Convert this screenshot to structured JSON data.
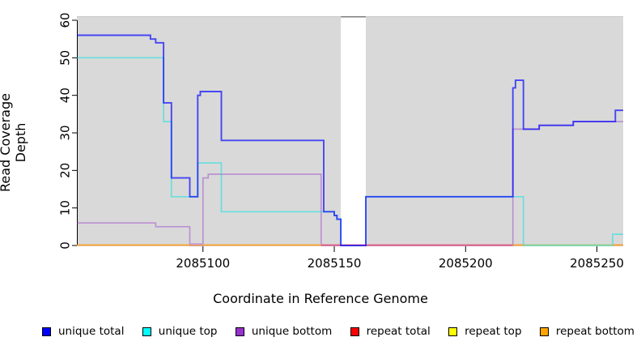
{
  "figure": {
    "x_axis_title": "Coordinate in Reference Genome",
    "y_axis_title": "Read Coverage Depth",
    "plot_background_color": "#D9D9D9",
    "uncovered_band_color": "#FFFFFF"
  },
  "chart_data": {
    "type": "line",
    "step": true,
    "title": "",
    "xlabel": "Coordinate in Reference Genome",
    "ylabel": "Read Coverage Depth",
    "xlim": [
      2085052,
      2085260
    ],
    "ylim": [
      0,
      61
    ],
    "x_tick_labels": [
      "2085100",
      "2085150",
      "2085200",
      "2085250"
    ],
    "x_tick_values": [
      2085100,
      2085150,
      2085200,
      2085250
    ],
    "y_tick_labels": [
      "0",
      "10",
      "20",
      "30",
      "40",
      "50",
      "60"
    ],
    "y_tick_values": [
      0,
      10,
      20,
      30,
      40,
      50,
      60
    ],
    "grid": false,
    "legend_position": "bottom",
    "covered_regions": [
      [
        2085052,
        2085152.5
      ],
      [
        2085162,
        2085260
      ]
    ],
    "uncovered_gap": [
      2085152.5,
      2085162
    ],
    "series": [
      {
        "name": "unique total",
        "legend_color": "#0000FF",
        "line_color": "rgba(0,0,255,0.68)",
        "line_width": 1.9,
        "points": [
          [
            2085052,
            56
          ],
          [
            2085080,
            56
          ],
          [
            2085080,
            55
          ],
          [
            2085082,
            55
          ],
          [
            2085082,
            54
          ],
          [
            2085085,
            54
          ],
          [
            2085085,
            38
          ],
          [
            2085088,
            38
          ],
          [
            2085088,
            18
          ],
          [
            2085095,
            18
          ],
          [
            2085095,
            13
          ],
          [
            2085098,
            13
          ],
          [
            2085098,
            40
          ],
          [
            2085099,
            40
          ],
          [
            2085099,
            41
          ],
          [
            2085107,
            41
          ],
          [
            2085107,
            28
          ],
          [
            2085146,
            28
          ],
          [
            2085146,
            9
          ],
          [
            2085150,
            9
          ],
          [
            2085150,
            8
          ],
          [
            2085151,
            8
          ],
          [
            2085151,
            7
          ],
          [
            2085152.5,
            7
          ],
          [
            2085152.5,
            0
          ],
          [
            2085162,
            0
          ],
          [
            2085162,
            13
          ],
          [
            2085218,
            13
          ],
          [
            2085218,
            42
          ],
          [
            2085219,
            42
          ],
          [
            2085219,
            44
          ],
          [
            2085222,
            44
          ],
          [
            2085222,
            31
          ],
          [
            2085228,
            31
          ],
          [
            2085228,
            32
          ],
          [
            2085241,
            32
          ],
          [
            2085241,
            33
          ],
          [
            2085257,
            33
          ],
          [
            2085257,
            36
          ],
          [
            2085260,
            36
          ]
        ]
      },
      {
        "name": "unique top",
        "legend_color": "#00FFFF",
        "line_color": "rgba(0,225,225,0.5)",
        "line_width": 1.7,
        "points": [
          [
            2085052,
            50
          ],
          [
            2085085,
            50
          ],
          [
            2085085,
            33
          ],
          [
            2085088,
            33
          ],
          [
            2085088,
            13
          ],
          [
            2085098,
            13
          ],
          [
            2085098,
            22
          ],
          [
            2085107,
            22
          ],
          [
            2085107,
            9
          ],
          [
            2085146,
            9
          ],
          [
            2085150,
            9
          ],
          [
            2085150,
            8
          ],
          [
            2085151,
            8
          ],
          [
            2085151,
            7
          ],
          [
            2085152.5,
            7
          ],
          [
            2085152.5,
            0
          ],
          [
            2085162,
            0
          ],
          [
            2085162,
            13
          ],
          [
            2085222,
            13
          ],
          [
            2085222,
            0
          ],
          [
            2085256,
            0
          ],
          [
            2085256,
            3
          ],
          [
            2085260,
            3
          ]
        ]
      },
      {
        "name": "unique bottom",
        "legend_color": "#9932CC",
        "line_color": "rgba(150,60,200,0.45)",
        "line_width": 1.7,
        "points": [
          [
            2085052,
            6
          ],
          [
            2085082,
            6
          ],
          [
            2085082,
            5
          ],
          [
            2085095,
            5
          ],
          [
            2085095,
            0
          ],
          [
            2085100,
            0
          ],
          [
            2085100,
            18
          ],
          [
            2085102,
            18
          ],
          [
            2085102,
            19
          ],
          [
            2085145,
            19
          ],
          [
            2085145,
            0
          ],
          [
            2085218,
            0
          ],
          [
            2085218,
            31
          ],
          [
            2085228,
            31
          ],
          [
            2085228,
            32
          ],
          [
            2085241,
            32
          ],
          [
            2085241,
            33
          ],
          [
            2085260,
            33
          ]
        ]
      },
      {
        "name": "repeat total",
        "legend_color": "#FF0000",
        "line_color": "#E2587A",
        "line_width": 1.6,
        "points": [
          [
            2085052,
            0
          ],
          [
            2085260,
            0
          ]
        ]
      },
      {
        "name": "repeat top",
        "legend_color": "#FFFF00",
        "line_color": "#E8E87E",
        "line_width": 1.6,
        "points": [
          [
            2085052,
            0
          ],
          [
            2085260,
            0
          ]
        ]
      },
      {
        "name": "repeat bottom",
        "legend_color": "#FFA500",
        "line_color": "#FA9E28",
        "line_width": 1.8,
        "points": [
          [
            2085052,
            0
          ],
          [
            2085260,
            0
          ]
        ]
      }
    ],
    "baseline_visible_segments": [
      {
        "from": 2085052,
        "to": 2085145,
        "color": "#FA9E28",
        "series": "repeat bottom",
        "lift": 0
      },
      {
        "from": 2085145,
        "to": 2085218,
        "color": "#E2587A",
        "series": "repeat total",
        "lift": 0
      },
      {
        "from": 2085095,
        "to": 2085100,
        "color": "#C49BDC",
        "series": "unique bottom",
        "lift": 1.3
      },
      {
        "from": 2085218,
        "to": 2085222,
        "color": "#FA9E28",
        "series": "repeat bottom",
        "lift": 0
      },
      {
        "from": 2085222,
        "to": 2085256,
        "color": "#8CCE8C",
        "series": "repeat top over unique top",
        "lift": 0
      },
      {
        "from": 2085256,
        "to": 2085260,
        "color": "#FA9E28",
        "series": "repeat bottom",
        "lift": 0
      }
    ]
  },
  "legend": {
    "items": [
      {
        "label": "unique total",
        "color": "#0000FF"
      },
      {
        "label": "unique top",
        "color": "#00FFFF"
      },
      {
        "label": "unique bottom",
        "color": "#9932CC"
      },
      {
        "label": "repeat total",
        "color": "#FF0000"
      },
      {
        "label": "repeat top",
        "color": "#FFFF00"
      },
      {
        "label": "repeat bottom",
        "color": "#FFA500"
      }
    ]
  }
}
